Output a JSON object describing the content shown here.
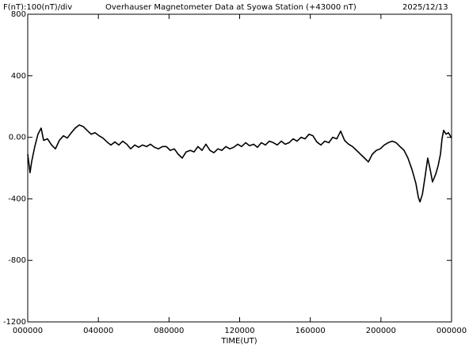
{
  "chart_data": {
    "type": "line",
    "title": "Overhauser Magnetometer Data at Syowa Station (+43000 nT)",
    "scale_label": "F(nT):100(nT)/div",
    "date": "2025/12/13",
    "xlabel": "TIME(UT)",
    "color": "#000000",
    "xlim": [
      0,
      24
    ],
    "xticks": [
      {
        "value": 0,
        "label": "000000"
      },
      {
        "value": 4,
        "label": "040000"
      },
      {
        "value": 8,
        "label": "080000"
      },
      {
        "value": 12,
        "label": "120000"
      },
      {
        "value": 16,
        "label": "160000"
      },
      {
        "value": 20,
        "label": "200000"
      },
      {
        "value": 24,
        "label": "000000"
      }
    ],
    "ylim": [
      -1200,
      800
    ],
    "yticks": [
      -1200,
      -800,
      -400,
      {
        "value": 0,
        "label": "0.00"
      },
      400,
      800
    ],
    "x": [
      0,
      0.13,
      0.22,
      0.4,
      0.58,
      0.76,
      0.9,
      1.12,
      1.35,
      1.57,
      1.79,
      2.02,
      2.24,
      2.47,
      2.69,
      2.92,
      3.14,
      3.36,
      3.59,
      3.81,
      4.04,
      4.26,
      4.49,
      4.71,
      4.94,
      5.16,
      5.38,
      5.61,
      5.83,
      6.06,
      6.28,
      6.5,
      6.73,
      6.95,
      7.18,
      7.4,
      7.63,
      7.85,
      8.07,
      8.3,
      8.52,
      8.75,
      8.97,
      9.2,
      9.42,
      9.64,
      9.87,
      10.09,
      10.32,
      10.54,
      10.77,
      10.99,
      11.22,
      11.44,
      11.66,
      11.89,
      12.11,
      12.34,
      12.56,
      12.79,
      13.01,
      13.23,
      13.46,
      13.68,
      13.91,
      14.13,
      14.36,
      14.58,
      14.8,
      15.03,
      15.25,
      15.48,
      15.7,
      15.93,
      16.15,
      16.37,
      16.6,
      16.82,
      17.05,
      17.27,
      17.5,
      17.72,
      17.94,
      18.17,
      18.39,
      18.62,
      18.84,
      19.07,
      19.29,
      19.51,
      19.74,
      19.96,
      20.19,
      20.41,
      20.64,
      20.86,
      21.08,
      21.31,
      21.53,
      21.76,
      21.98,
      22.12,
      22.21,
      22.35,
      22.52,
      22.65,
      22.79,
      22.92,
      23.1,
      23.24,
      23.37,
      23.46,
      23.55,
      23.69,
      23.82,
      24.0
    ],
    "values": [
      -110,
      -230,
      -160,
      -60,
      20,
      60,
      -20,
      -10,
      -50,
      -75,
      -20,
      10,
      -5,
      30,
      60,
      80,
      70,
      45,
      20,
      30,
      10,
      -5,
      -30,
      -50,
      -30,
      -50,
      -25,
      -45,
      -75,
      -50,
      -65,
      -50,
      -60,
      -45,
      -65,
      -75,
      -60,
      -60,
      -85,
      -75,
      -110,
      -135,
      -95,
      -85,
      -95,
      -60,
      -85,
      -45,
      -85,
      -100,
      -75,
      -85,
      -60,
      -75,
      -65,
      -45,
      -60,
      -35,
      -55,
      -45,
      -65,
      -35,
      -50,
      -25,
      -35,
      -50,
      -25,
      -45,
      -35,
      -10,
      -25,
      0,
      -10,
      20,
      10,
      -30,
      -50,
      -25,
      -35,
      0,
      -10,
      40,
      -20,
      -45,
      -60,
      -85,
      -110,
      -135,
      -160,
      -110,
      -85,
      -75,
      -50,
      -35,
      -25,
      -35,
      -60,
      -85,
      -135,
      -210,
      -300,
      -390,
      -420,
      -370,
      -240,
      -135,
      -210,
      -290,
      -240,
      -185,
      -110,
      -10,
      45,
      20,
      30,
      -5
    ]
  }
}
